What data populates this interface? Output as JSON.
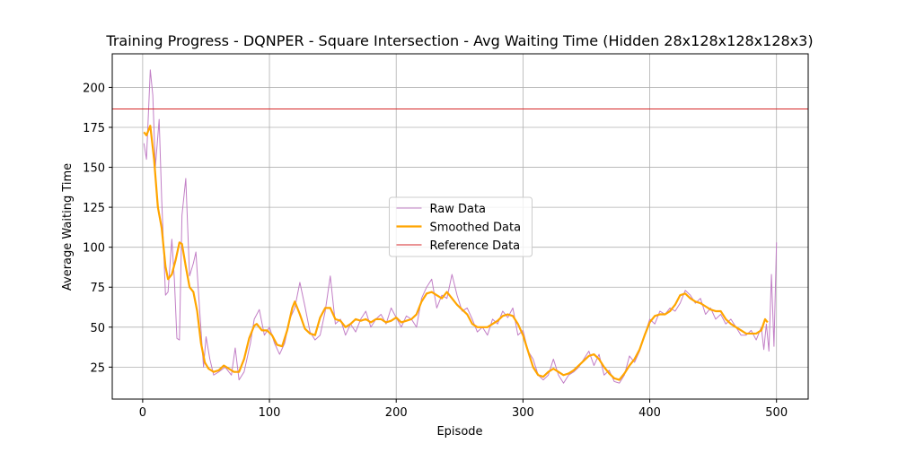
{
  "chart_data": {
    "type": "line",
    "title": "Training Progress - DQNPER - Square Intersection - Avg Waiting Time (Hidden 28x128x128x128x3)",
    "xlabel": "Episode",
    "ylabel": "Average Waiting Time",
    "xlim": [
      -24,
      525
    ],
    "ylim": [
      5,
      221
    ],
    "xticks": [
      0,
      100,
      200,
      300,
      400,
      500
    ],
    "yticks": [
      25,
      50,
      75,
      100,
      125,
      150,
      175,
      200
    ],
    "grid": true,
    "legend": "center",
    "series": [
      {
        "name": "Raw Data",
        "color": "#c27fc6",
        "width": 1,
        "x": [
          1,
          3,
          6,
          8,
          10,
          13,
          15,
          18,
          20,
          23,
          25,
          27,
          29,
          31,
          34,
          37,
          40,
          42,
          45,
          48,
          50,
          53,
          56,
          60,
          65,
          70,
          73,
          76,
          80,
          85,
          88,
          92,
          96,
          100,
          104,
          108,
          112,
          116,
          120,
          124,
          128,
          132,
          136,
          140,
          144,
          148,
          152,
          156,
          160,
          164,
          168,
          172,
          176,
          180,
          184,
          188,
          192,
          196,
          200,
          204,
          208,
          212,
          216,
          220,
          224,
          228,
          232,
          236,
          240,
          244,
          248,
          252,
          256,
          260,
          264,
          268,
          272,
          276,
          280,
          284,
          288,
          292,
          296,
          300,
          304,
          308,
          312,
          316,
          320,
          324,
          328,
          332,
          336,
          340,
          344,
          348,
          352,
          356,
          360,
          364,
          368,
          372,
          376,
          380,
          384,
          388,
          392,
          396,
          400,
          404,
          408,
          412,
          416,
          420,
          424,
          428,
          432,
          436,
          440,
          444,
          448,
          452,
          456,
          460,
          464,
          468,
          472,
          476,
          480,
          484,
          488,
          490,
          492,
          494,
          496,
          498,
          500
        ],
        "values": [
          165,
          155,
          211,
          195,
          150,
          180,
          130,
          70,
          72,
          105,
          80,
          43,
          42,
          120,
          143,
          82,
          90,
          97,
          60,
          25,
          44,
          30,
          20,
          22,
          25,
          20,
          37,
          17,
          22,
          40,
          55,
          61,
          45,
          50,
          40,
          33,
          40,
          55,
          62,
          78,
          63,
          47,
          42,
          45,
          60,
          82,
          52,
          55,
          45,
          52,
          47,
          55,
          60,
          50,
          55,
          58,
          52,
          62,
          56,
          50,
          57,
          55,
          50,
          68,
          75,
          80,
          62,
          70,
          68,
          83,
          70,
          60,
          62,
          55,
          47,
          50,
          45,
          55,
          52,
          60,
          56,
          62,
          45,
          48,
          35,
          30,
          20,
          17,
          20,
          30,
          20,
          15,
          20,
          22,
          25,
          30,
          35,
          26,
          33,
          20,
          23,
          16,
          15,
          20,
          32,
          28,
          35,
          45,
          55,
          52,
          60,
          58,
          62,
          60,
          65,
          73,
          70,
          65,
          68,
          58,
          62,
          55,
          58,
          52,
          55,
          50,
          45,
          45,
          48,
          42,
          50,
          36,
          52,
          35,
          83,
          38,
          103
        ]
      },
      {
        "name": "Smoothed Data",
        "color": "#ffa500",
        "width": 2.2,
        "x": [
          1,
          3,
          6,
          9,
          12,
          15,
          18,
          20,
          23,
          26,
          29,
          31,
          34,
          37,
          40,
          43,
          46,
          49,
          52,
          56,
          60,
          64,
          68,
          72,
          76,
          80,
          84,
          88,
          90,
          94,
          98,
          102,
          106,
          110,
          114,
          118,
          120,
          124,
          128,
          132,
          136,
          140,
          144,
          148,
          152,
          156,
          160,
          164,
          168,
          172,
          176,
          180,
          184,
          188,
          192,
          196,
          200,
          204,
          208,
          212,
          216,
          220,
          224,
          228,
          232,
          236,
          240,
          244,
          248,
          252,
          256,
          260,
          264,
          268,
          272,
          276,
          280,
          284,
          288,
          292,
          296,
          300,
          304,
          308,
          312,
          316,
          320,
          324,
          328,
          332,
          336,
          340,
          344,
          348,
          352,
          356,
          360,
          364,
          368,
          372,
          376,
          380,
          384,
          388,
          392,
          396,
          400,
          404,
          408,
          412,
          416,
          420,
          424,
          428,
          432,
          436,
          440,
          444,
          448,
          452,
          456,
          460,
          464,
          468,
          472,
          476,
          480,
          484,
          488,
          491,
          493
        ],
        "values": [
          172,
          170,
          176,
          155,
          125,
          112,
          88,
          80,
          83,
          92,
          103,
          102,
          88,
          75,
          72,
          60,
          40,
          28,
          24,
          22,
          23,
          26,
          24,
          22,
          22,
          30,
          43,
          51,
          52,
          48,
          48,
          45,
          39,
          38,
          48,
          62,
          66,
          58,
          49,
          46,
          45,
          56,
          62,
          62,
          55,
          54,
          50,
          52,
          55,
          54,
          55,
          53,
          55,
          55,
          53,
          54,
          56,
          53,
          54,
          55,
          58,
          66,
          71,
          72,
          70,
          68,
          72,
          68,
          64,
          61,
          58,
          52,
          50,
          50,
          50,
          52,
          54,
          57,
          58,
          57,
          52,
          45,
          35,
          25,
          20,
          19,
          22,
          24,
          22,
          20,
          21,
          23,
          26,
          29,
          32,
          33,
          30,
          25,
          21,
          18,
          17,
          21,
          26,
          30,
          36,
          45,
          53,
          57,
          58,
          58,
          60,
          64,
          70,
          71,
          68,
          66,
          65,
          63,
          61,
          60,
          60,
          55,
          52,
          50,
          48,
          46,
          46,
          46,
          48,
          55,
          53
        ]
      }
    ],
    "reference": {
      "name": "Reference Data",
      "color": "#d62728",
      "value": 186.5
    }
  }
}
